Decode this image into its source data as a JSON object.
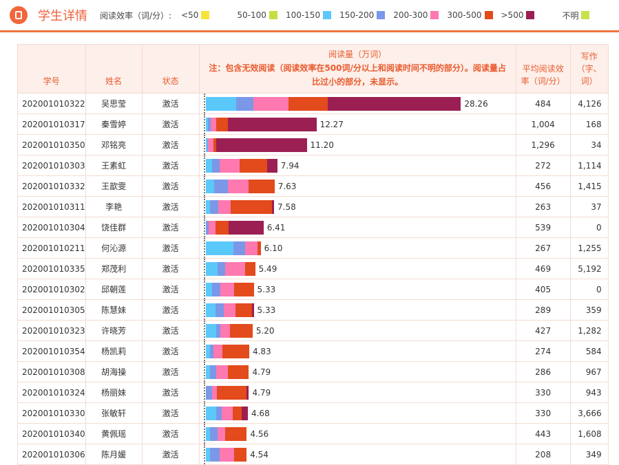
{
  "header": {
    "title": "学生详情",
    "legend_label": "阅读效率（词/分）:"
  },
  "legend": [
    {
      "label": "<50",
      "color": "#f7e23a"
    },
    {
      "label": "50-100",
      "color": "#c3e042"
    },
    {
      "label": "100-150",
      "color": "#5bc8fa"
    },
    {
      "label": "150-200",
      "color": "#7b97e8"
    },
    {
      "label": "200-300",
      "color": "#fd79b0"
    },
    {
      "label": "300-500",
      "color": "#e34a1c"
    },
    {
      "label": ">500",
      "color": "#9b1f52"
    },
    {
      "label": "不明",
      "color": "#c5e34b"
    }
  ],
  "table": {
    "headers": {
      "id": "学号",
      "name": "姓名",
      "status": "状态",
      "reading": "阅读量（万词）",
      "note": "注：包含无效阅读（阅读效率在500词/分以上和阅读时间不明的部分）。阅读量占比过小的部分，未显示。",
      "avg": "平均阅读效率（词/分）",
      "writing": "写作（字、词）"
    },
    "segment_order": [
      "100-150",
      "150-200",
      "200-300",
      "300-500",
      ">500"
    ],
    "rows": [
      {
        "id": "202001010322",
        "name": "吴思莹",
        "status": "激活",
        "total": "28.26",
        "segments": [
          3.4,
          1.88,
          3.88,
          4.34,
          14.76
        ],
        "avg": "484",
        "writing": "4,126"
      },
      {
        "id": "202001010317",
        "name": "秦雪婷",
        "status": "激活",
        "total": "12.27",
        "segments": [
          0.25,
          0.3,
          0.61,
          1.29,
          9.82
        ],
        "avg": "1,004",
        "writing": "168"
      },
      {
        "id": "202001010350",
        "name": "邓铭亮",
        "status": "激活",
        "total": "11.20",
        "segments": [
          0.2,
          0.08,
          0.6,
          0.3,
          10.02
        ],
        "avg": "1,296",
        "writing": "34"
      },
      {
        "id": "202001010303",
        "name": "王素虹",
        "status": "激活",
        "total": "7.94",
        "segments": [
          0.71,
          0.84,
          2.21,
          3.04,
          1.14
        ],
        "avg": "272",
        "writing": "1,114"
      },
      {
        "id": "202001010332",
        "name": "王歆雯",
        "status": "激活",
        "total": "7.63",
        "segments": [
          0.95,
          1.54,
          2.3,
          2.84,
          0
        ],
        "avg": "456",
        "writing": "1,415"
      },
      {
        "id": "202001010311",
        "name": "李艳",
        "status": "激活",
        "total": "7.58",
        "segments": [
          0.48,
          0.94,
          1.35,
          4.58,
          0.23
        ],
        "avg": "263",
        "writing": "37"
      },
      {
        "id": "202001010304",
        "name": "饶佳群",
        "status": "激活",
        "total": "6.41",
        "segments": [
          0,
          0.33,
          0.77,
          1.46,
          3.85
        ],
        "avg": "539",
        "writing": "0"
      },
      {
        "id": "202001010211",
        "name": "何沁源",
        "status": "激活",
        "total": "6.10",
        "segments": [
          3.05,
          1.36,
          1.31,
          0.38,
          0
        ],
        "avg": "267",
        "writing": "1,255"
      },
      {
        "id": "202001010335",
        "name": "郑茂利",
        "status": "激活",
        "total": "5.49",
        "segments": [
          1.36,
          0.77,
          2.21,
          1.15,
          0
        ],
        "avg": "469",
        "writing": "5,192"
      },
      {
        "id": "202001010302",
        "name": "邱朝莲",
        "status": "激活",
        "total": "5.33",
        "segments": [
          0.72,
          0.9,
          1.56,
          2.15,
          0
        ],
        "avg": "405",
        "writing": "0"
      },
      {
        "id": "202001010305",
        "name": "陈慧妹",
        "status": "激活",
        "total": "5.33",
        "segments": [
          1.13,
          0.9,
          1.31,
          1.79,
          0.2
        ],
        "avg": "289",
        "writing": "359"
      },
      {
        "id": "202001010323",
        "name": "许晓芳",
        "status": "激活",
        "total": "5.20",
        "segments": [
          1.14,
          0.49,
          1.1,
          2.47,
          0
        ],
        "avg": "427",
        "writing": "1,282"
      },
      {
        "id": "202001010354",
        "name": "杨凯莉",
        "status": "激活",
        "total": "4.83",
        "segments": [
          0.48,
          0.36,
          1.01,
          2.98,
          0
        ],
        "avg": "274",
        "writing": "584"
      },
      {
        "id": "202001010308",
        "name": "胡海操",
        "status": "激活",
        "total": "4.79",
        "segments": [
          0.49,
          0.69,
          1.31,
          2.3,
          0
        ],
        "avg": "286",
        "writing": "967"
      },
      {
        "id": "202001010324",
        "name": "杨丽妹",
        "status": "激活",
        "total": "4.79",
        "segments": [
          0,
          0.74,
          0.51,
          3.28,
          0.26
        ],
        "avg": "330",
        "writing": "943"
      },
      {
        "id": "202001010330",
        "name": "张敏轩",
        "status": "激活",
        "total": "4.68",
        "segments": [
          1.17,
          0.64,
          1.22,
          0.97,
          0.68
        ],
        "avg": "330",
        "writing": "3,666"
      },
      {
        "id": "202001010340",
        "name": "黄佩瑶",
        "status": "激活",
        "total": "4.56",
        "segments": [
          0.49,
          0.85,
          0.85,
          2.37,
          0
        ],
        "avg": "443",
        "writing": "1,608"
      },
      {
        "id": "202001010306",
        "name": "陈月媛",
        "status": "激活",
        "total": "4.54",
        "segments": [
          0.49,
          1.1,
          1.59,
          1.36,
          0
        ],
        "avg": "208",
        "writing": "349"
      }
    ]
  }
}
